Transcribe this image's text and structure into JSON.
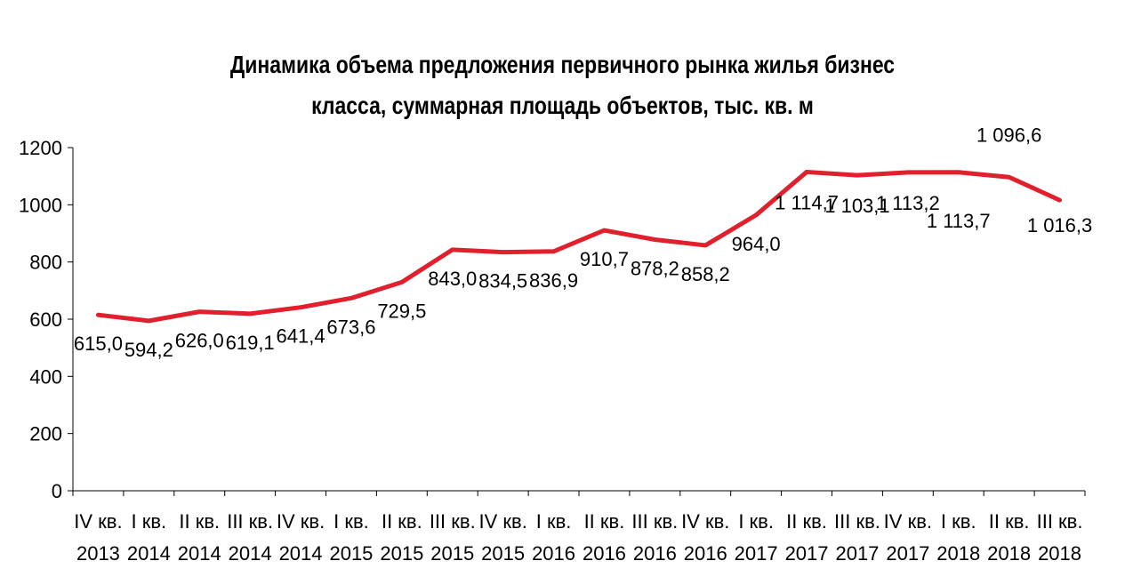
{
  "chart_data": {
    "type": "line",
    "title_line1": "Динамика объема предложения первичного рынка жилья бизнес",
    "title_line2": "класса, суммарная площадь объектов, тыс. кв. м",
    "xlabel": "",
    "ylabel": "",
    "ylim": [
      0,
      1200
    ],
    "yticks": [
      "0",
      "200",
      "400",
      "600",
      "800",
      "1000",
      "1200"
    ],
    "legend": "none",
    "grid": false,
    "line_color": "#E0202C",
    "categories": [
      {
        "q": "IV кв.",
        "year": "2013"
      },
      {
        "q": "I кв.",
        "year": "2014"
      },
      {
        "q": "II кв.",
        "year": "2014"
      },
      {
        "q": "III кв.",
        "year": "2014"
      },
      {
        "q": "IV кв.",
        "year": "2014"
      },
      {
        "q": "I кв.",
        "year": "2015"
      },
      {
        "q": "II кв.",
        "year": "2015"
      },
      {
        "q": "III кв.",
        "year": "2015"
      },
      {
        "q": "IV кв.",
        "year": "2015"
      },
      {
        "q": "I кв.",
        "year": "2016"
      },
      {
        "q": "II кв.",
        "year": "2016"
      },
      {
        "q": "III кв.",
        "year": "2016"
      },
      {
        "q": "IV кв.",
        "year": "2016"
      },
      {
        "q": "I кв.",
        "year": "2017"
      },
      {
        "q": "II кв.",
        "year": "2017"
      },
      {
        "q": "III кв.",
        "year": "2017"
      },
      {
        "q": "IV кв.",
        "year": "2017"
      },
      {
        "q": "I кв.",
        "year": "2018"
      },
      {
        "q": "II кв.",
        "year": "2018"
      },
      {
        "q": "III кв.",
        "year": "2018"
      }
    ],
    "values": [
      615.0,
      594.2,
      626.0,
      619.1,
      641.4,
      673.6,
      729.5,
      843.0,
      834.5,
      836.9,
      910.7,
      878.2,
      858.2,
      964.0,
      1114.7,
      1103.1,
      1113.2,
      1113.7,
      1096.6,
      1016.3
    ],
    "labels": [
      "615,0",
      "594,2",
      "626,0",
      "619,1",
      "641,4",
      "673,6",
      "729,5",
      "843,0",
      "834,5",
      "836,9",
      "910,7",
      "878,2",
      "858,2",
      "964,0",
      "1 114,7",
      "1 103,1",
      "1 113,2",
      "1 113,7",
      "1 096,6",
      "1 016,3"
    ]
  }
}
